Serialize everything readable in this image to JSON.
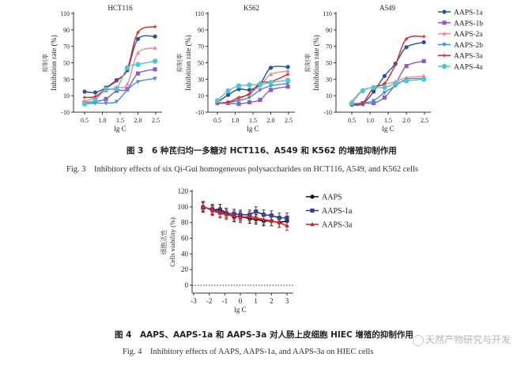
{
  "colors": {
    "AAPS-1a": "#2a4fa3",
    "AAPS-1b": "#8b5fc0",
    "AAPS-2a": "#f08a90",
    "AAPS-2b": "#4a8fd6",
    "AAPS-3a": "#d62a2a",
    "AAPS-4a": "#4cc8d0",
    "AAPS": "#111111",
    "AAPS-1a-fig4": "#2b3f9e",
    "AAPS-3a-fig4": "#e02020"
  },
  "chart_data": [
    {
      "type": "line",
      "title": "HCT116",
      "xlabel": "lg C",
      "ylabel": "Inhibition rate (%)",
      "ylabel_zh": "抑制率",
      "xlim": [
        0.5,
        2.5
      ],
      "ylim": [
        -10,
        110
      ],
      "xticks": [
        "0.5",
        "1.0",
        "1.5",
        "2.0",
        "2.5"
      ],
      "yticks": [
        "-10",
        "10",
        "30",
        "50",
        "70",
        "90",
        "110"
      ],
      "x": [
        0.5,
        0.8,
        1.1,
        1.4,
        1.7,
        2.0,
        2.48
      ],
      "series": [
        {
          "name": "AAPS-1a",
          "marker": "circle",
          "values": [
            15,
            14,
            20,
            29,
            41,
            79,
            82
          ]
        },
        {
          "name": "AAPS-1b",
          "marker": "square",
          "values": [
            2,
            3,
            6,
            16,
            18,
            37,
            42
          ]
        },
        {
          "name": "AAPS-2a",
          "marker": "triangle-up",
          "values": [
            3,
            8,
            16,
            20,
            24,
            62,
            68
          ]
        },
        {
          "name": "AAPS-2b",
          "marker": "triangle-down",
          "values": [
            0,
            1,
            1,
            3,
            17,
            27,
            31
          ]
        },
        {
          "name": "AAPS-3a",
          "marker": "star",
          "values": [
            8,
            9,
            19,
            28,
            42,
            87,
            94
          ]
        },
        {
          "name": "AAPS-4a",
          "marker": "circle-large",
          "values": [
            0,
            5,
            18,
            19,
            44,
            48,
            52
          ]
        }
      ]
    },
    {
      "type": "line",
      "title": "K562",
      "xlabel": "lg C",
      "ylabel": "Inhibition rate (%)",
      "ylabel_zh": "抑制率",
      "xlim": [
        0.5,
        2.5
      ],
      "ylim": [
        -10,
        110
      ],
      "xticks": [
        "0.5",
        "1.0",
        "1.5",
        "2.0",
        "2.5"
      ],
      "yticks": [
        "-10",
        "10",
        "30",
        "50",
        "70",
        "90",
        "110"
      ],
      "x": [
        0.5,
        0.8,
        1.1,
        1.4,
        1.7,
        2.0,
        2.48
      ],
      "series": [
        {
          "name": "AAPS-1a",
          "marker": "circle",
          "values": [
            2,
            11,
            18,
            17,
            24,
            44,
            45
          ]
        },
        {
          "name": "AAPS-1b",
          "marker": "square",
          "values": [
            1,
            1,
            0,
            2,
            5,
            17,
            21
          ]
        },
        {
          "name": "AAPS-2a",
          "marker": "triangle-up",
          "values": [
            1,
            2,
            6,
            13,
            22,
            36,
            40
          ]
        },
        {
          "name": "AAPS-2b",
          "marker": "triangle-down",
          "values": [
            1,
            2,
            4,
            8,
            17,
            22,
            25
          ]
        },
        {
          "name": "AAPS-3a",
          "marker": "star",
          "values": [
            1,
            2,
            8,
            12,
            26,
            27,
            36
          ]
        },
        {
          "name": "AAPS-4a",
          "marker": "circle-large",
          "values": [
            4,
            16,
            22,
            23,
            24,
            26,
            29
          ]
        }
      ]
    },
    {
      "type": "line",
      "title": "A549",
      "xlabel": "lg C",
      "ylabel": "Inhibition rate (%)",
      "ylabel_zh": "抑制率",
      "xlim": [
        0.5,
        2.5
      ],
      "ylim": [
        -10,
        110
      ],
      "xticks": [
        "0.5",
        "1.0",
        "1.5",
        "2.0",
        "2.5"
      ],
      "yticks": [
        "-10",
        "10",
        "30",
        "50",
        "70",
        "90",
        "110"
      ],
      "x": [
        0.5,
        0.8,
        1.1,
        1.4,
        1.7,
        2.0,
        2.48
      ],
      "legend": "right",
      "series": [
        {
          "name": "AAPS-1a",
          "marker": "circle",
          "values": [
            -1,
            0,
            15,
            34,
            49,
            69,
            75
          ]
        },
        {
          "name": "AAPS-1b",
          "marker": "square",
          "values": [
            0,
            1,
            1,
            8,
            24,
            46,
            52
          ]
        },
        {
          "name": "AAPS-2a",
          "marker": "triangle-up",
          "values": [
            3,
            17,
            20,
            24,
            27,
            32,
            34
          ]
        },
        {
          "name": "AAPS-2b",
          "marker": "triangle-down",
          "values": [
            0,
            1,
            4,
            14,
            22,
            30,
            31
          ]
        },
        {
          "name": "AAPS-3a",
          "marker": "star",
          "values": [
            0,
            1,
            20,
            25,
            48,
            79,
            82
          ]
        },
        {
          "name": "AAPS-4a",
          "marker": "circle-large",
          "values": [
            1,
            16,
            20,
            20,
            25,
            28,
            30
          ]
        }
      ]
    },
    {
      "type": "line",
      "title": "",
      "xlabel": "lg C",
      "ylabel": "Cells viability (%)",
      "ylabel_zh": "细胞活性",
      "xlim": [
        -3,
        3
      ],
      "ylim": [
        -10,
        120
      ],
      "xticks": [
        "-3",
        "-2",
        "-1",
        "0",
        "1",
        "2",
        "3"
      ],
      "yticks": [
        "0",
        "20",
        "40",
        "60",
        "80",
        "100",
        "120"
      ],
      "reference_line": 0,
      "legend": "right",
      "x": [
        -2.4,
        -1.8,
        -1.3,
        -0.9,
        -0.4,
        0,
        0.6,
        1,
        1.5,
        2,
        2.5,
        3
      ],
      "series": [
        {
          "name": "AAPS",
          "marker": "circle",
          "values": [
            100,
            96,
            97,
            92,
            87,
            88,
            85,
            84,
            82,
            82,
            80,
            82
          ]
        },
        {
          "name": "AAPS-1a",
          "marker": "square",
          "values": [
            99,
            97,
            93,
            92,
            91,
            90,
            90,
            94,
            90,
            89,
            86,
            86
          ]
        },
        {
          "name": "AAPS-3a",
          "marker": "triangle-up",
          "values": [
            101,
            95,
            92,
            90,
            89,
            86,
            88,
            86,
            84,
            82,
            80,
            76
          ]
        }
      ]
    }
  ],
  "captions": {
    "fig3_zh": "图 3　6 种芪归均一多糖对 HCT116、A549 和 K562 的增殖抑制作用",
    "fig3_en": "Fig. 3　Inhibitory effects of six Qi-Gui homogeneous polysaccharides on HCT116, A549, and K562 cells",
    "fig4_zh": "图 4　AAPS、AAPS-1a 和 AAPS-3a 对人肠上皮细胞 HIEC 增殖的抑制作用",
    "fig4_en": "Fig. 4　Inhibitory effects of AAPS, AAPS-1a, and AAPS-3a on HIEC cells"
  },
  "watermark": "天然产物研究与开发"
}
